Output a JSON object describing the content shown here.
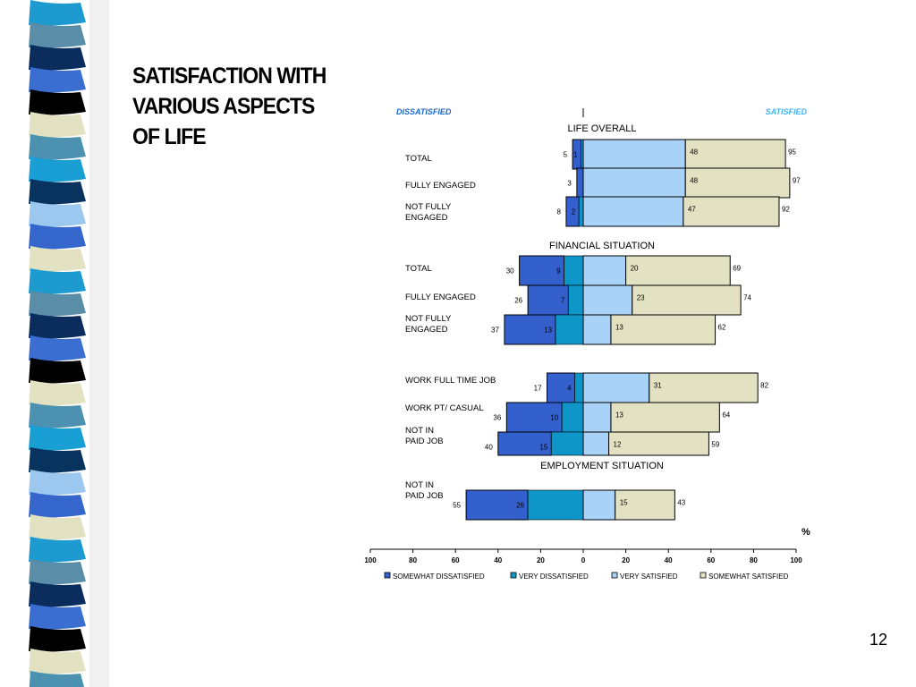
{
  "slide": {
    "title_lines": [
      "SATISFACTION WITH",
      "VARIOUS ASPECTS",
      "OF LIFE"
    ],
    "page_number": "12"
  },
  "colors": {
    "somewhat_dissatisfied": "#3360cc",
    "very_dissatisfied": "#0f96c8",
    "very_satisfied": "#a8d2f8",
    "somewhat_satisfied": "#e2e2c2",
    "satisfied_label": "#43b2f0",
    "dissatisfied_label": "#1a66cc"
  },
  "chart_data": {
    "type": "bar",
    "orientation": "horizontal-diverging",
    "direction_labels": {
      "left": "DISSATISFIED",
      "right": "SATISFIED"
    },
    "unit_label": "%",
    "xlim": [
      -100,
      100
    ],
    "x_ticks": [
      "100",
      "80",
      "60",
      "40",
      "20",
      "0",
      "20",
      "40",
      "60",
      "80",
      "100"
    ],
    "legend": [
      "SOMEWHAT DISSATISFIED",
      "VERY DISSATISFIED",
      "VERY SATISFIED",
      "SOMEWHAT SATISFIED"
    ],
    "section_titles": [
      "LIFE OVERALL",
      "FINANCIAL SITUATION",
      "EMPLOYMENT SITUATION"
    ],
    "rows": [
      {
        "label": [
          "TOTAL"
        ],
        "dis_total": 5,
        "very_dis": 1,
        "very_sat": 48,
        "sat_total": 95
      },
      {
        "label": [
          "FULLY ENGAGED"
        ],
        "dis_total": 3,
        "very_dis": null,
        "very_sat": 48,
        "sat_total": 97
      },
      {
        "label": [
          "NOT FULLY",
          "ENGAGED"
        ],
        "dis_total": 8,
        "very_dis": 2,
        "very_sat": 47,
        "sat_total": 92
      },
      {
        "label": [
          "TOTAL"
        ],
        "dis_total": 30,
        "very_dis": 9,
        "very_sat": 20,
        "sat_total": 69
      },
      {
        "label": [
          "FULLY ENGAGED"
        ],
        "dis_total": 26,
        "very_dis": 7,
        "very_sat": 23,
        "sat_total": 74
      },
      {
        "label": [
          "NOT FULLY",
          "ENGAGED"
        ],
        "dis_total": 37,
        "very_dis": 13,
        "very_sat": 13,
        "sat_total": 62
      },
      {
        "label": [
          "WORK FULL TIME JOB"
        ],
        "dis_total": 17,
        "very_dis": 4,
        "very_sat": 31,
        "sat_total": 82
      },
      {
        "label": [
          "WORK PT/ CASUAL"
        ],
        "dis_total": 36,
        "very_dis": 10,
        "very_sat": 13,
        "sat_total": 64
      },
      {
        "label": [
          "NOT IN",
          "PAID JOB"
        ],
        "dis_total": 40,
        "very_dis": 15,
        "very_sat": 12,
        "sat_total": 59
      },
      {
        "label": [
          "NOT IN",
          "PAID JOB"
        ],
        "dis_total": 55,
        "very_dis": 26,
        "very_sat": 15,
        "sat_total": 43
      }
    ]
  }
}
